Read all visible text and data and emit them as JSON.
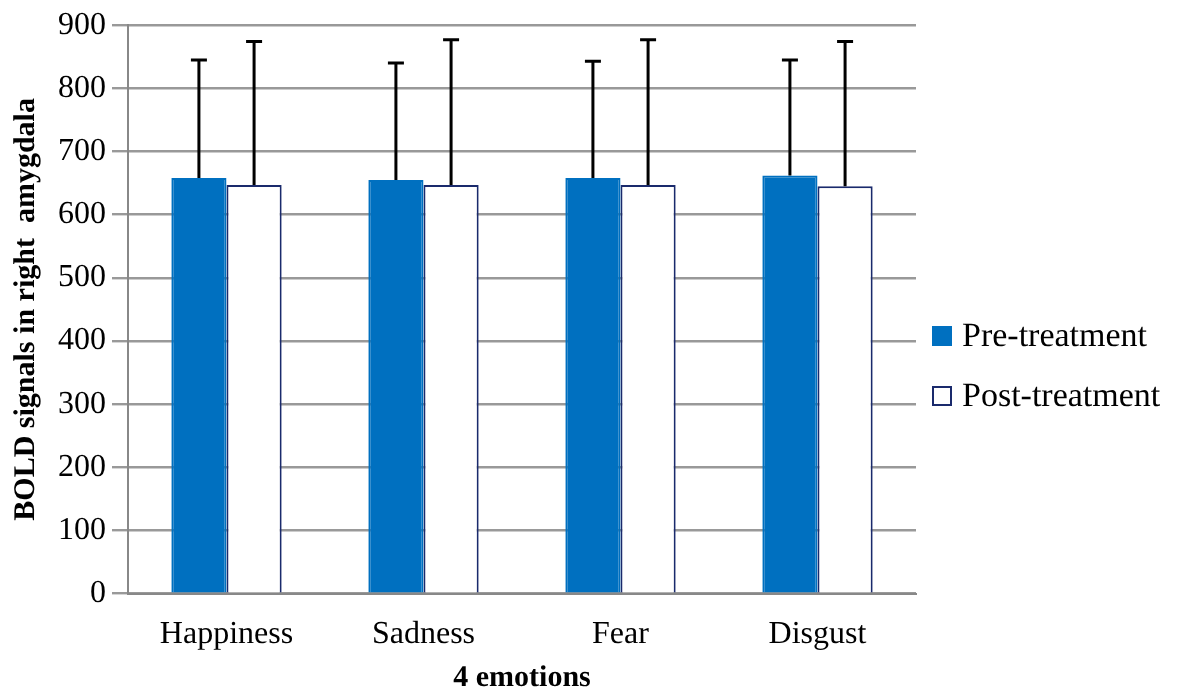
{
  "chart_data": {
    "type": "bar",
    "xlabel": "4 emotions",
    "ylabel": "BOLD signals in right  amygdala",
    "categories": [
      "Happiness",
      "Sadness",
      "Fear",
      "Disgust"
    ],
    "series": [
      {
        "name": "Pre-treatment",
        "color": "#0070c0",
        "values": [
          658,
          655,
          658,
          662
        ],
        "errors": [
          [
            658,
            845
          ],
          [
            655,
            840
          ],
          [
            658,
            843
          ],
          [
            662,
            845
          ]
        ]
      },
      {
        "name": "Post-treatment",
        "color": "#ffffff",
        "values": [
          647,
          647,
          647,
          645
        ],
        "errors": [
          [
            647,
            874
          ],
          [
            647,
            877
          ],
          [
            647,
            877
          ],
          [
            645,
            874
          ]
        ]
      }
    ],
    "ylim": [
      0,
      900
    ],
    "yticks": [
      0,
      100,
      200,
      300,
      400,
      500,
      600,
      700,
      800,
      900
    ],
    "grid": "y",
    "legend": "right"
  }
}
